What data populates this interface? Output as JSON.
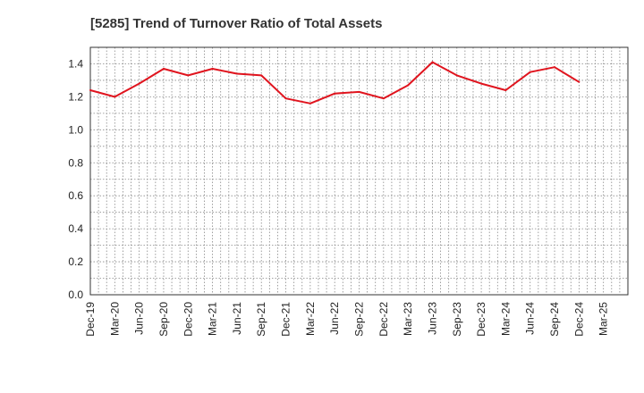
{
  "chart_data": {
    "type": "line",
    "title": "[5285]  Trend of Turnover Ratio of Total Assets",
    "xlabel": "",
    "ylabel": "",
    "ylim": [
      0,
      1.5
    ],
    "yticks": [
      "0.0",
      "0.2",
      "0.4",
      "0.6",
      "0.8",
      "1.0",
      "1.2",
      "1.4"
    ],
    "categories": [
      "Dec-19",
      "Mar-20",
      "Jun-20",
      "Sep-20",
      "Dec-20",
      "Mar-21",
      "Jun-21",
      "Sep-21",
      "Dec-21",
      "Mar-22",
      "Jun-22",
      "Sep-22",
      "Dec-22",
      "Mar-23",
      "Jun-23",
      "Sep-23",
      "Dec-23",
      "Mar-24",
      "Jun-24",
      "Sep-24",
      "Dec-24",
      "Mar-25"
    ],
    "grid": true,
    "line_color": "#e0141e",
    "series": [
      {
        "values": [
          1.24,
          1.2,
          1.28,
          1.37,
          1.33,
          1.37,
          1.34,
          1.33,
          1.19,
          1.16,
          1.22,
          1.23,
          1.19,
          1.27,
          1.41,
          1.33,
          1.28,
          1.24,
          1.35,
          1.38,
          1.29,
          null
        ]
      }
    ]
  }
}
